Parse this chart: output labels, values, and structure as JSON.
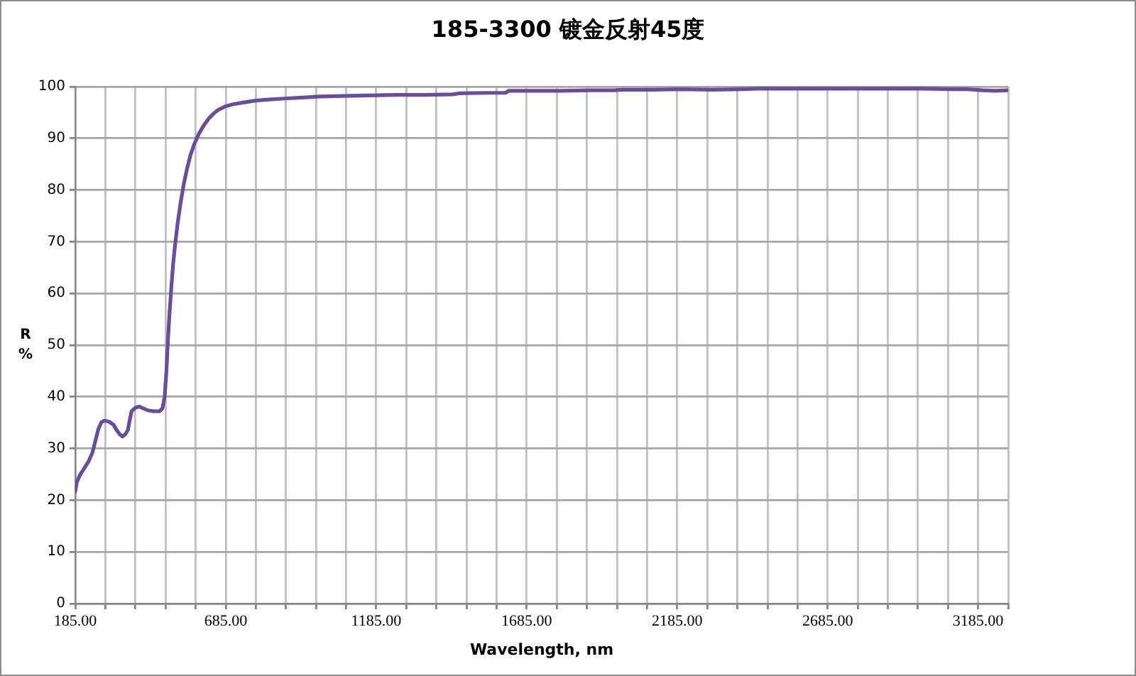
{
  "chart_data": {
    "type": "line",
    "title": "185-3300 镀金反射45度",
    "xlabel": "Wavelength, nm",
    "ylabel": "R\n%",
    "x": [
      185,
      190,
      200,
      215,
      230,
      242,
      252,
      262,
      272,
      282,
      297,
      312,
      322,
      332,
      342,
      352,
      360,
      366,
      372,
      385,
      398,
      410,
      425,
      445,
      465,
      475,
      482,
      488,
      493,
      498,
      504,
      510,
      516,
      525,
      535,
      545,
      556,
      568,
      580,
      595,
      611,
      628,
      643,
      660,
      685,
      710,
      740,
      785,
      830,
      880,
      940,
      1000,
      1080,
      1160,
      1250,
      1350,
      1440,
      1460,
      1560,
      1615,
      1625,
      1700,
      1800,
      1900,
      1978,
      2000,
      2100,
      2200,
      2300,
      2400,
      2450,
      2600,
      2700,
      2800,
      2900,
      3000,
      3100,
      3150,
      3200,
      3240,
      3285
    ],
    "series": [
      {
        "color": "#6a4c9c",
        "values": [
          21.7,
          23.5,
          24.8,
          26.2,
          27.6,
          29.2,
          31.5,
          33.8,
          35.1,
          35.4,
          35.2,
          34.6,
          33.6,
          32.8,
          32.3,
          32.8,
          33.6,
          35.5,
          37.2,
          37.9,
          38.1,
          37.8,
          37.4,
          37.2,
          37.2,
          37.8,
          40.0,
          45.0,
          51.0,
          56.0,
          61.0,
          65.5,
          69.0,
          73.5,
          77.5,
          81.0,
          84.0,
          86.8,
          88.8,
          90.8,
          92.4,
          93.8,
          94.7,
          95.5,
          96.2,
          96.6,
          96.9,
          97.3,
          97.5,
          97.7,
          97.9,
          98.1,
          98.2,
          98.3,
          98.4,
          98.4,
          98.5,
          98.7,
          98.8,
          98.8,
          99.2,
          99.2,
          99.2,
          99.3,
          99.3,
          99.4,
          99.4,
          99.5,
          99.4,
          99.5,
          99.6,
          99.6,
          99.6,
          99.6,
          99.6,
          99.6,
          99.5,
          99.5,
          99.3,
          99.2,
          99.3
        ]
      }
    ],
    "xlim": [
      185,
      3285
    ],
    "xticks": [
      {
        "value": 185,
        "label": "185.00"
      },
      {
        "value": 285,
        "label": null
      },
      {
        "value": 385,
        "label": null
      },
      {
        "value": 485,
        "label": null
      },
      {
        "value": 585,
        "label": null
      },
      {
        "value": 685,
        "label": "685.00"
      },
      {
        "value": 785,
        "label": null
      },
      {
        "value": 885,
        "label": null
      },
      {
        "value": 985,
        "label": null
      },
      {
        "value": 1085,
        "label": null
      },
      {
        "value": 1185,
        "label": "1185.00"
      },
      {
        "value": 1285,
        "label": null
      },
      {
        "value": 1385,
        "label": null
      },
      {
        "value": 1485,
        "label": null
      },
      {
        "value": 1585,
        "label": null
      },
      {
        "value": 1685,
        "label": "1685.00"
      },
      {
        "value": 1785,
        "label": null
      },
      {
        "value": 1885,
        "label": null
      },
      {
        "value": 1985,
        "label": null
      },
      {
        "value": 2085,
        "label": null
      },
      {
        "value": 2185,
        "label": "2185.00"
      },
      {
        "value": 2285,
        "label": null
      },
      {
        "value": 2385,
        "label": null
      },
      {
        "value": 2485,
        "label": null
      },
      {
        "value": 2585,
        "label": null
      },
      {
        "value": 2685,
        "label": "2685.00"
      },
      {
        "value": 2785,
        "label": null
      },
      {
        "value": 2885,
        "label": null
      },
      {
        "value": 2985,
        "label": null
      },
      {
        "value": 3085,
        "label": null
      },
      {
        "value": 3185,
        "label": "3185.00"
      },
      {
        "value": 3285,
        "label": null
      }
    ],
    "ylim": [
      0,
      100
    ],
    "yticks": [
      0,
      10,
      20,
      30,
      40,
      50,
      60,
      70,
      80,
      90,
      100
    ],
    "grid": true,
    "marker": "none",
    "line_style": "solid"
  }
}
